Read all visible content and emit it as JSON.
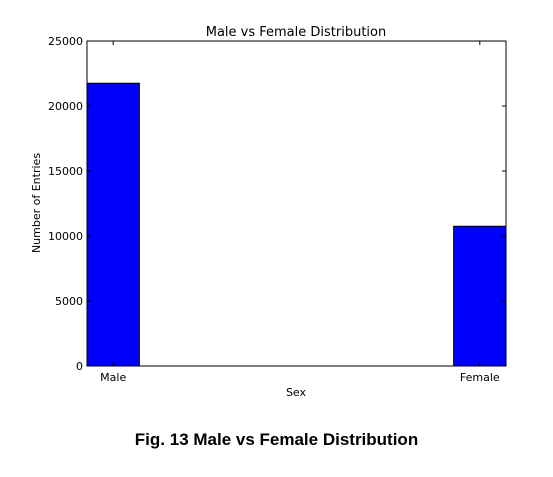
{
  "chart_data": {
    "type": "bar",
    "title": "Male vs Female Distribution",
    "xlabel": "Sex",
    "ylabel": "Number of Entries",
    "categories": [
      "Male",
      "Female"
    ],
    "values": [
      21750,
      10750
    ],
    "ylim": [
      0,
      25000
    ],
    "yticks": [
      0,
      5000,
      10000,
      15000,
      20000,
      25000
    ],
    "bar_color": "#0000ff",
    "grid": false,
    "legend": "none"
  },
  "caption": "Fig. 13 Male vs Female Distribution"
}
